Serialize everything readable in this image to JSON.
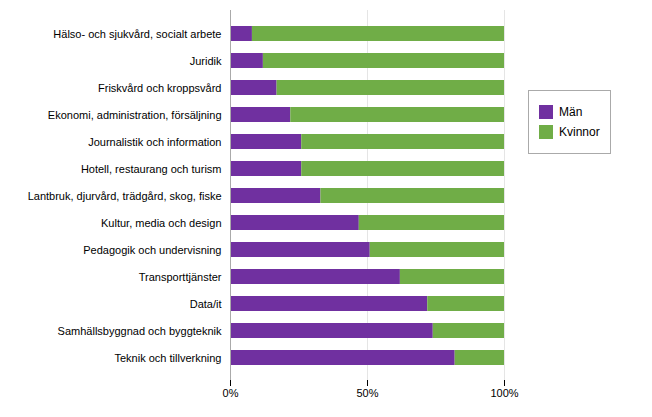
{
  "chart_data": {
    "type": "bar",
    "orientation": "horizontal",
    "stacked": true,
    "categories": [
      "Hälso- och sjukvård, socialt arbete",
      "Juridik",
      "Friskvård och kroppsvård",
      "Ekonomi, administration, försäljning",
      "Journalistik och information",
      "Hotell, restaurang och turism",
      "Lantbruk, djurvård, trädgård, skog, fiske",
      "Kultur, media och design",
      "Pedagogik och undervisning",
      "Transporttjänster",
      "Data/it",
      "Samhällsbyggnad och byggteknik",
      "Teknik och tillverkning"
    ],
    "series": [
      {
        "name": "Män",
        "color": "#7030a0",
        "values": [
          8,
          12,
          17,
          22,
          26,
          26,
          33,
          47,
          51,
          62,
          72,
          74,
          82
        ]
      },
      {
        "name": "Kvinnor",
        "color": "#70ad47",
        "values": [
          92,
          88,
          83,
          78,
          74,
          74,
          67,
          53,
          49,
          38,
          28,
          26,
          18
        ]
      }
    ],
    "xlim": [
      0,
      100
    ],
    "xticks": [
      {
        "value": 0,
        "label": "0%"
      },
      {
        "value": 50,
        "label": "50%"
      },
      {
        "value": 100,
        "label": "100%"
      }
    ],
    "grid": true,
    "legend": "right"
  }
}
